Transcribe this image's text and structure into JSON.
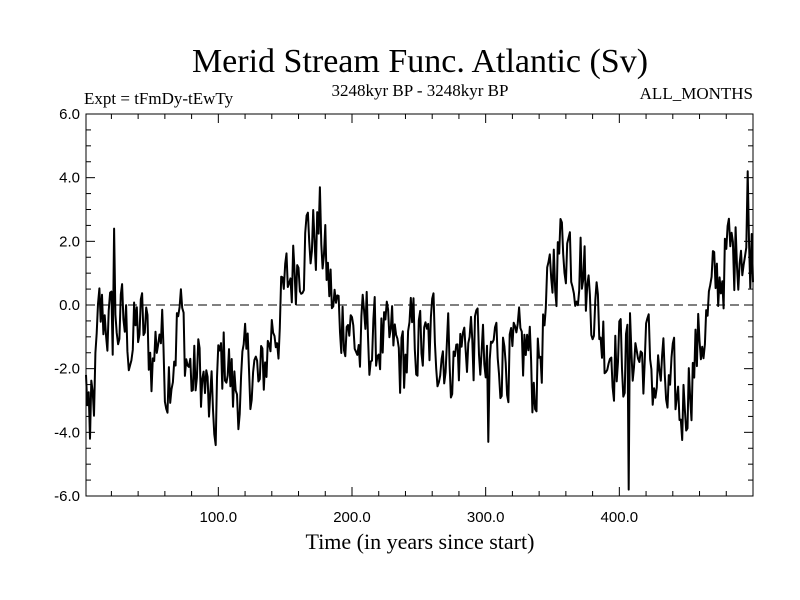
{
  "chart_data": {
    "type": "line",
    "title": "Merid Stream Func. Atlantic (Sv)",
    "subtitle_left": "Expt = tFmDy-tEwTy",
    "subtitle_center": "3248kyr BP - 3248kyr BP",
    "subtitle_right": "ALL_MONTHS",
    "xlabel": "Time (in years since start)",
    "ylabel": "",
    "xlim": [
      1,
      500
    ],
    "ylim": [
      -6,
      6
    ],
    "x_ticks": [
      100,
      200,
      300,
      400
    ],
    "x_tick_labels": [
      "100.0",
      "200.0",
      "300.0",
      "400.0"
    ],
    "y_ticks": [
      -6,
      -4,
      -2,
      0,
      2,
      4,
      6
    ],
    "y_tick_labels": [
      "-6.0",
      "-4.0",
      "-2.0",
      "0.0",
      "2.0",
      "4.0",
      "6.0"
    ],
    "reference_line": 0,
    "series": [
      {
        "name": "Merid Stream Func. Atlantic",
        "color": "#000000",
        "x": [
          1,
          6,
          11,
          16,
          21,
          26,
          31,
          36,
          41,
          46,
          51,
          56,
          61,
          66,
          71,
          76,
          81,
          86,
          91,
          96,
          101,
          106,
          111,
          116,
          121,
          126,
          131,
          136,
          141,
          146,
          151,
          156,
          161,
          166,
          171,
          176,
          181,
          186,
          191,
          196,
          201,
          206,
          211,
          216,
          221,
          226,
          231,
          236,
          241,
          246,
          251,
          256,
          261,
          266,
          271,
          276,
          281,
          286,
          291,
          296,
          301,
          306,
          311,
          316,
          321,
          326,
          331,
          336,
          341,
          346,
          351,
          356,
          361,
          366,
          371,
          376,
          381,
          386,
          391,
          396,
          401,
          406,
          411,
          416,
          421,
          426,
          431,
          436,
          441,
          446,
          451,
          456,
          461,
          466,
          471,
          476,
          481,
          486,
          491,
          496,
          500
        ],
        "values": [
          -2.6,
          -3.5,
          -0.5,
          -0.3,
          -1.0,
          -0.5,
          -0.8,
          -1.2,
          -0.6,
          -1.0,
          -1.8,
          -0.5,
          -2.2,
          -1.5,
          -0.2,
          -1.5,
          -2.5,
          -2.0,
          -2.8,
          -3.8,
          -2.0,
          -1.5,
          -2.8,
          -2.5,
          -2.2,
          -1.8,
          -2.8,
          -1.5,
          -0.6,
          -0.4,
          0.5,
          1.2,
          1.6,
          2.2,
          2.0,
          2.5,
          1.0,
          0.0,
          -0.5,
          -0.2,
          -1.0,
          -1.5,
          -0.6,
          -1.4,
          -1.0,
          -1.5,
          -1.2,
          -1.8,
          -1.6,
          -1.0,
          -1.2,
          -1.6,
          -0.7,
          -1.4,
          -1.2,
          -1.8,
          -1.4,
          -1.0,
          -1.2,
          -1.3,
          -2.5,
          -1.2,
          -1.5,
          -1.4,
          -2.0,
          -1.7,
          -1.3,
          -2.5,
          -1.5,
          -0.2,
          1.4,
          1.8,
          2.2,
          1.3,
          1.6,
          0.4,
          0.3,
          -0.8,
          -1.2,
          -1.4,
          -1.6,
          -1.6,
          -1.2,
          -1.8,
          -1.4,
          -2.4,
          -2.2,
          -3.0,
          -2.8,
          -3.4,
          -2.5,
          -1.8,
          -1.0,
          -0.4,
          0.5,
          1.0,
          1.6,
          1.5,
          2.3,
          1.6,
          1.8
        ]
      }
    ],
    "extremes": [
      {
        "x": 4,
        "y": -4.2
      },
      {
        "x": 22,
        "y": 2.4
      },
      {
        "x": 98,
        "y": -4.4
      },
      {
        "x": 302,
        "y": -4.3
      },
      {
        "x": 407,
        "y": -5.8
      },
      {
        "x": 496,
        "y": 4.2
      }
    ]
  }
}
